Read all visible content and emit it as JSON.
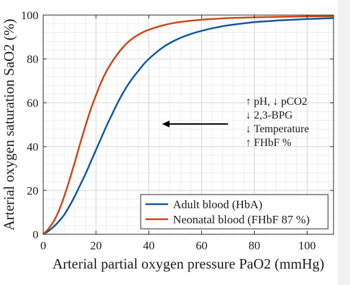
{
  "chart_data": {
    "type": "line",
    "title": "",
    "xlabel": "Arterial partial oxygen pressure PaO2 (mmHg)",
    "ylabel": "Arterial oxygen saturation SaO2 (%)",
    "xlim": [
      0,
      110
    ],
    "ylim": [
      0,
      100
    ],
    "xticks": [
      0,
      20,
      40,
      60,
      80,
      100
    ],
    "yticks": [
      0,
      20,
      40,
      60,
      80,
      100
    ],
    "minor_grid_x_step": 4,
    "minor_grid_y_step": 4,
    "grid": true,
    "legend_position": "bottom-right",
    "series": [
      {
        "name": "Adult blood (HbA)",
        "color": "#0c57a3",
        "x": [
          0,
          2,
          4,
          6,
          8,
          10,
          12,
          14,
          16,
          18,
          20,
          22,
          24,
          26,
          28,
          30,
          32,
          34,
          36,
          38,
          40,
          45,
          50,
          55,
          60,
          65,
          70,
          75,
          80,
          85,
          90,
          95,
          100,
          105,
          110
        ],
        "y": [
          0,
          1.5,
          3.5,
          6,
          9,
          13,
          17.5,
          22.5,
          27.5,
          33,
          38.5,
          44,
          49.5,
          54.5,
          59.5,
          64,
          68,
          71.5,
          74.5,
          77.5,
          80,
          85,
          88.5,
          91,
          92.8,
          94.2,
          95.3,
          96.1,
          96.8,
          97.2,
          97.6,
          97.9,
          98.2,
          98.4,
          98.6
        ]
      },
      {
        "name": "Neonatal blood (FHbF 87 %)",
        "color": "#c84716",
        "x": [
          0,
          2,
          4,
          6,
          8,
          10,
          12,
          14,
          16,
          18,
          20,
          22,
          24,
          26,
          28,
          30,
          32,
          34,
          36,
          38,
          40,
          45,
          50,
          55,
          60,
          65,
          70,
          75,
          80,
          85,
          90,
          95,
          100,
          105,
          110
        ],
        "y": [
          0,
          2.5,
          6,
          11,
          17.5,
          25,
          33,
          41.5,
          49.5,
          57,
          63.5,
          69.5,
          74.5,
          78.5,
          82,
          85,
          87.5,
          89.5,
          91,
          92.3,
          93.3,
          95.2,
          96.5,
          97.3,
          97.9,
          98.3,
          98.6,
          98.8,
          99,
          99.1,
          99.2,
          99.3,
          99.4,
          99.4,
          99.5
        ]
      }
    ],
    "annotations": {
      "lines": [
        "↑ pH, ↓ pCO2",
        "↓ 2,3-BPG",
        "↓ Temperature",
        "↑ FHbF %"
      ],
      "arrow_from": [
        70,
        50
      ],
      "arrow_to": [
        45,
        50
      ],
      "arrow_color": "#000000"
    }
  }
}
